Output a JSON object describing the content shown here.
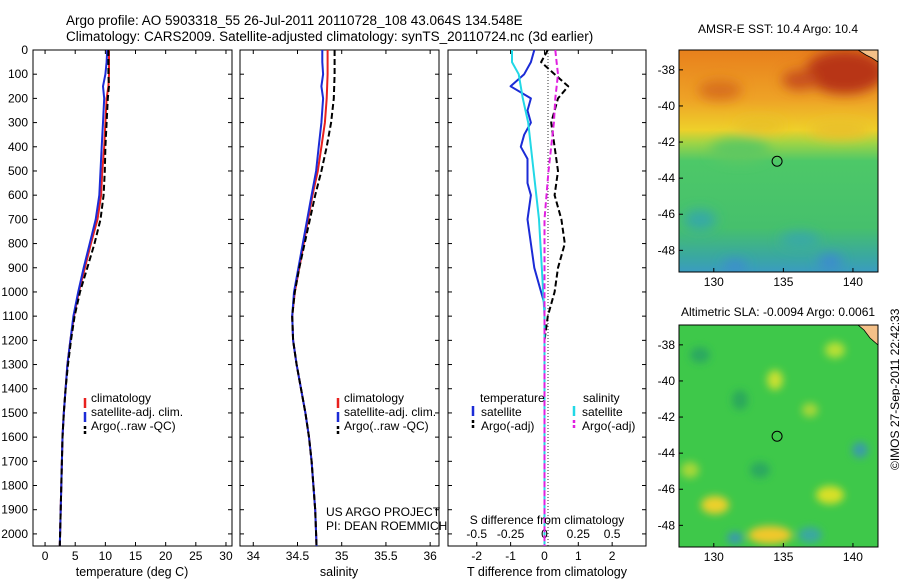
{
  "header": {
    "line1": "Argo profile: AO 5903318_55 26-Jul-2011 20110728_108 43.064S 134.548E",
    "line2": "Climatology: CARS2009. Satellite-adjusted climatology: synTS_20110724.nc (3d earlier)"
  },
  "depth_ticks": [
    "0",
    "100",
    "200",
    "300",
    "400",
    "500",
    "600",
    "700",
    "800",
    "900",
    "1000",
    "1100",
    "1200",
    "1300",
    "1400",
    "1500",
    "1600",
    "1700",
    "1800",
    "1900",
    "2000"
  ],
  "colors": {
    "climatology": "#e8201e",
    "satellite": "#1b2bd6",
    "argo": "#000000",
    "sal_satellite": "#22d8e6",
    "sal_argo": "#e020e0"
  },
  "chart_data": [
    {
      "type": "line",
      "xlabel": "temperature (deg C)",
      "xticks": [
        "0",
        "5",
        "10",
        "15",
        "20",
        "25",
        "30"
      ],
      "xlim": [
        -2,
        31
      ],
      "ylim": [
        2050,
        0
      ],
      "legend": [
        "climatology",
        "satellite-adj. clim.",
        "Argo(..raw -QC)"
      ],
      "series": [
        {
          "name": "climatology",
          "style": "solid",
          "points": [
            [
              10.6,
              0
            ],
            [
              10.6,
              100
            ],
            [
              10.5,
              150
            ],
            [
              10.2,
              200
            ],
            [
              10.0,
              300
            ],
            [
              9.8,
              400
            ],
            [
              9.5,
              500
            ],
            [
              9.3,
              600
            ],
            [
              8.7,
              700
            ],
            [
              7.6,
              800
            ],
            [
              6.6,
              900
            ],
            [
              5.6,
              1000
            ],
            [
              4.8,
              1100
            ],
            [
              4.2,
              1200
            ],
            [
              3.7,
              1300
            ],
            [
              3.4,
              1400
            ],
            [
              3.1,
              1500
            ],
            [
              2.9,
              1600
            ],
            [
              2.7,
              1800
            ],
            [
              2.5,
              2000
            ],
            [
              2.45,
              2050
            ]
          ]
        },
        {
          "name": "satellite-adj. clim.",
          "style": "solid",
          "points": [
            [
              10.3,
              0
            ],
            [
              10.2,
              50
            ],
            [
              10.0,
              100
            ],
            [
              9.6,
              150
            ],
            [
              9.8,
              200
            ],
            [
              9.6,
              300
            ],
            [
              9.4,
              400
            ],
            [
              9.2,
              500
            ],
            [
              9.0,
              600
            ],
            [
              8.4,
              700
            ],
            [
              7.4,
              800
            ],
            [
              6.4,
              900
            ],
            [
              5.5,
              1000
            ],
            [
              4.7,
              1100
            ],
            [
              4.2,
              1200
            ],
            [
              3.7,
              1300
            ],
            [
              3.4,
              1400
            ],
            [
              3.1,
              1500
            ],
            [
              2.9,
              1600
            ],
            [
              2.7,
              1800
            ],
            [
              2.5,
              2000
            ],
            [
              2.45,
              2050
            ]
          ]
        },
        {
          "name": "Argo(..raw -QC)",
          "style": "dashed",
          "points": [
            [
              10.5,
              0
            ],
            [
              10.5,
              100
            ],
            [
              10.6,
              150
            ],
            [
              10.4,
              200
            ],
            [
              10.2,
              300
            ],
            [
              10.0,
              400
            ],
            [
              9.9,
              500
            ],
            [
              9.7,
              600
            ],
            [
              9.2,
              700
            ],
            [
              8.2,
              800
            ],
            [
              7.0,
              900
            ],
            [
              5.8,
              1000
            ],
            [
              4.9,
              1100
            ],
            [
              4.3,
              1200
            ],
            [
              3.8,
              1300
            ],
            [
              3.4,
              1400
            ],
            [
              3.1,
              1500
            ],
            [
              2.9,
              1600
            ],
            [
              2.7,
              1800
            ],
            [
              2.5,
              2000
            ],
            [
              2.45,
              2050
            ]
          ]
        }
      ]
    },
    {
      "type": "line",
      "xlabel": "salinity",
      "xticks": [
        "34",
        "34.5",
        "35",
        "35.5",
        "36"
      ],
      "xlim": [
        33.85,
        36.1
      ],
      "ylim": [
        2050,
        0
      ],
      "legend": [
        "climatology",
        "satellite-adj. clim.",
        "Argo(..raw -QC)"
      ],
      "series": [
        {
          "name": "climatology",
          "style": "solid",
          "points": [
            [
              34.84,
              0
            ],
            [
              34.84,
              100
            ],
            [
              34.83,
              200
            ],
            [
              34.81,
              300
            ],
            [
              34.77,
              400
            ],
            [
              34.73,
              500
            ],
            [
              34.67,
              600
            ],
            [
              34.62,
              700
            ],
            [
              34.57,
              800
            ],
            [
              34.52,
              900
            ],
            [
              34.47,
              1000
            ],
            [
              34.44,
              1100
            ],
            [
              34.45,
              1200
            ],
            [
              34.49,
              1300
            ],
            [
              34.54,
              1400
            ],
            [
              34.59,
              1500
            ],
            [
              34.63,
              1600
            ],
            [
              34.66,
              1700
            ],
            [
              34.68,
              1800
            ],
            [
              34.7,
              1900
            ],
            [
              34.71,
              2000
            ],
            [
              34.715,
              2050
            ]
          ]
        },
        {
          "name": "satellite-adj. clim.",
          "style": "solid",
          "points": [
            [
              34.78,
              0
            ],
            [
              34.78,
              50
            ],
            [
              34.79,
              100
            ],
            [
              34.77,
              150
            ],
            [
              34.79,
              200
            ],
            [
              34.77,
              300
            ],
            [
              34.74,
              400
            ],
            [
              34.71,
              500
            ],
            [
              34.66,
              600
            ],
            [
              34.61,
              700
            ],
            [
              34.56,
              800
            ],
            [
              34.51,
              900
            ],
            [
              34.46,
              1000
            ],
            [
              34.44,
              1100
            ],
            [
              34.45,
              1200
            ],
            [
              34.49,
              1300
            ],
            [
              34.54,
              1400
            ],
            [
              34.59,
              1500
            ],
            [
              34.63,
              1600
            ],
            [
              34.66,
              1700
            ],
            [
              34.68,
              1800
            ],
            [
              34.7,
              1900
            ],
            [
              34.71,
              2000
            ],
            [
              34.715,
              2050
            ]
          ]
        },
        {
          "name": "Argo(..raw -QC)",
          "style": "dashed",
          "points": [
            [
              34.92,
              0
            ],
            [
              34.92,
              100
            ],
            [
              34.91,
              200
            ],
            [
              34.88,
              300
            ],
            [
              34.83,
              400
            ],
            [
              34.77,
              500
            ],
            [
              34.7,
              600
            ],
            [
              34.64,
              700
            ],
            [
              34.58,
              800
            ],
            [
              34.52,
              900
            ],
            [
              34.47,
              1000
            ],
            [
              34.44,
              1100
            ],
            [
              34.45,
              1200
            ],
            [
              34.49,
              1300
            ],
            [
              34.54,
              1400
            ],
            [
              34.59,
              1500
            ],
            [
              34.63,
              1600
            ],
            [
              34.66,
              1700
            ],
            [
              34.68,
              1800
            ],
            [
              34.7,
              1900
            ],
            [
              34.71,
              2000
            ],
            [
              34.715,
              2050
            ]
          ]
        }
      ],
      "annotations": [
        "US ARGO PROJECT",
        "PI: DEAN ROEMMICH"
      ]
    },
    {
      "type": "line",
      "xlabel": "T difference from climatology",
      "xticks": [
        "-2",
        "-1",
        "0",
        "1",
        "2"
      ],
      "top_xlabel": "S difference from climatology",
      "top_xticks": [
        "-0.5",
        "-0.25",
        "0",
        "0.25",
        "0.5"
      ],
      "xlim": [
        -2.85,
        3.0
      ],
      "ylim": [
        2050,
        0
      ],
      "legend_titles": [
        "temperature",
        "salinity"
      ],
      "legend": [
        "satellite",
        "Argo(-adj)",
        "satellite",
        "Argo(-adj)"
      ],
      "series": [
        {
          "name": "satellite",
          "group": "temperature",
          "style": "solid",
          "points": [
            [
              -0.3,
              0
            ],
            [
              -0.4,
              50
            ],
            [
              -0.6,
              100
            ],
            [
              -1.0,
              150
            ],
            [
              -0.4,
              200
            ],
            [
              -0.5,
              250
            ],
            [
              -0.4,
              300
            ],
            [
              -0.6,
              350
            ],
            [
              -0.7,
              400
            ],
            [
              -0.5,
              450
            ],
            [
              -0.5,
              500
            ],
            [
              -0.5,
              550
            ],
            [
              -0.4,
              600
            ],
            [
              -0.5,
              700
            ],
            [
              -0.4,
              800
            ],
            [
              -0.3,
              900
            ],
            [
              -0.1,
              1000
            ],
            [
              0,
              1050
            ],
            [
              0,
              2050
            ]
          ]
        },
        {
          "name": "Argo(-adj)",
          "group": "temperature",
          "style": "dashed",
          "points": [
            [
              0.1,
              0
            ],
            [
              -0.1,
              50
            ],
            [
              0.3,
              100
            ],
            [
              0.7,
              150
            ],
            [
              0.4,
              200
            ],
            [
              0.2,
              300
            ],
            [
              0.3,
              400
            ],
            [
              0.4,
              500
            ],
            [
              0.3,
              600
            ],
            [
              0.5,
              700
            ],
            [
              0.6,
              800
            ],
            [
              0.4,
              900
            ],
            [
              0.3,
              1000
            ],
            [
              0.2,
              1050
            ],
            [
              0.1,
              1100
            ],
            [
              0,
              1200
            ],
            [
              0,
              2050
            ]
          ]
        },
        {
          "name": "satellite",
          "group": "salinity",
          "style": "solid",
          "points": [
            [
              -0.24,
              0
            ],
            [
              -0.24,
              50
            ],
            [
              -0.19,
              100
            ],
            [
              -0.16,
              200
            ],
            [
              -0.12,
              300
            ],
            [
              -0.1,
              400
            ],
            [
              -0.08,
              500
            ],
            [
              -0.04,
              700
            ],
            [
              -0.02,
              900
            ],
            [
              0,
              1100
            ],
            [
              0,
              2050
            ]
          ]
        },
        {
          "name": "Argo(-adj)",
          "group": "salinity",
          "style": "dashed",
          "points": [
            [
              0.08,
              0
            ],
            [
              0.09,
              50
            ],
            [
              0.1,
              100
            ],
            [
              0.08,
              200
            ],
            [
              0.07,
              300
            ],
            [
              0.05,
              400
            ],
            [
              0.03,
              500
            ],
            [
              0,
              700
            ],
            [
              0,
              2050
            ]
          ]
        }
      ]
    },
    {
      "type": "heatmap",
      "title": "AMSR-E SST: 10.4 Argo: 10.4",
      "xticks": [
        "130",
        "135",
        "140"
      ],
      "yticks": [
        "-38",
        "-40",
        "-42",
        "-44",
        "-46",
        "-48"
      ],
      "xlim": [
        127.5,
        141.8
      ],
      "ylim": [
        -36.9,
        -49.2
      ],
      "marker": {
        "lon": 134.548,
        "lat": -43.064
      }
    },
    {
      "type": "heatmap",
      "title": "Altimetric SLA: -0.0094 Argo: 0.0061",
      "xticks": [
        "130",
        "135",
        "140"
      ],
      "yticks": [
        "-38",
        "-40",
        "-42",
        "-44",
        "-46",
        "-48"
      ],
      "xlim": [
        127.5,
        141.8
      ],
      "ylim": [
        -36.9,
        -49.2
      ],
      "marker": {
        "lon": 134.548,
        "lat": -43.064
      }
    }
  ],
  "credit": "©IMOS 27-Sep-2011 22:42:33"
}
